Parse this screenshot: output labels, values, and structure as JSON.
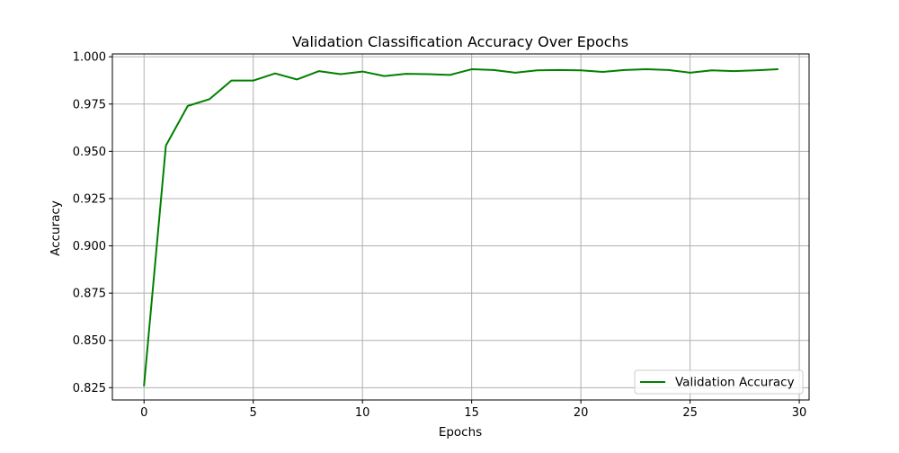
{
  "chart_data": {
    "type": "line",
    "title": "Validation Classification Accuracy Over Epochs",
    "xlabel": "Epochs",
    "ylabel": "Accuracy",
    "xlim": [
      -1.45,
      30.45
    ],
    "ylim": [
      0.8185,
      1.0015
    ],
    "x_ticks": [
      0,
      5,
      10,
      15,
      20,
      25,
      30
    ],
    "y_ticks": [
      0.825,
      0.85,
      0.875,
      0.9,
      0.925,
      0.95,
      0.975,
      1.0
    ],
    "x_tick_labels": [
      "0",
      "5",
      "10",
      "15",
      "20",
      "25",
      "30"
    ],
    "y_tick_labels": [
      "0.825",
      "0.850",
      "0.875",
      "0.900",
      "0.925",
      "0.950",
      "0.975",
      "1.000"
    ],
    "grid": true,
    "legend_position": "lower right",
    "series": [
      {
        "name": "Validation Accuracy",
        "color": "#008000",
        "x": [
          0,
          1,
          2,
          3,
          4,
          5,
          6,
          7,
          8,
          9,
          10,
          11,
          12,
          13,
          14,
          15,
          16,
          17,
          18,
          19,
          20,
          21,
          22,
          23,
          24,
          25,
          26,
          27,
          28,
          29
        ],
        "values": [
          0.8262,
          0.953,
          0.974,
          0.9776,
          0.9874,
          0.9874,
          0.9912,
          0.988,
          0.9924,
          0.9908,
          0.9922,
          0.9898,
          0.991,
          0.9908,
          0.9904,
          0.9934,
          0.993,
          0.9916,
          0.9928,
          0.993,
          0.9928,
          0.992,
          0.993,
          0.9934,
          0.993,
          0.9916,
          0.9928,
          0.9924,
          0.9928,
          0.9934
        ]
      }
    ]
  }
}
